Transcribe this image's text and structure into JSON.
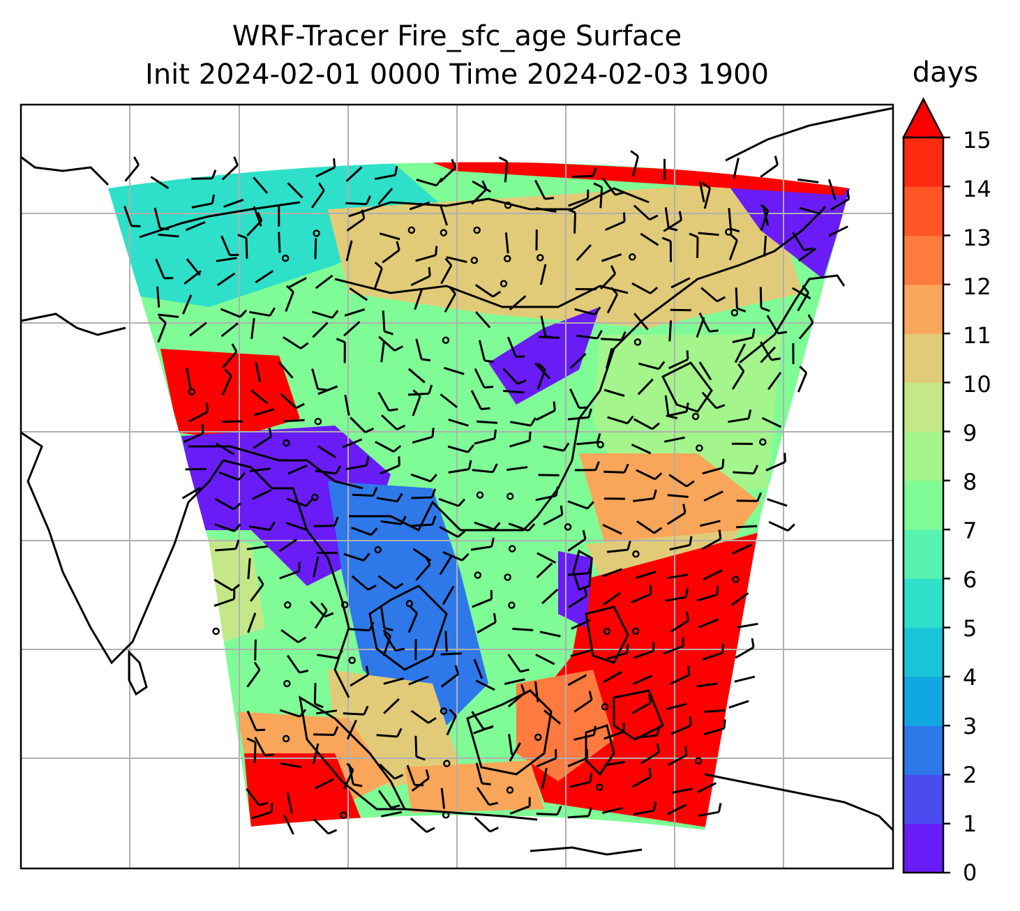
{
  "title": {
    "line1": "WRF-Tracer Fire_sfc_age Surface",
    "line2": "Init 2024-02-01 0000 Time 2024-02-03 1900"
  },
  "colorbar": {
    "units": "days",
    "tick_labels": [
      "0",
      "1",
      "2",
      "3",
      "4",
      "5",
      "6",
      "7",
      "8",
      "9",
      "10",
      "11",
      "12",
      "13",
      "14",
      "15"
    ],
    "levels": [
      0,
      1,
      2,
      3,
      4,
      5,
      6,
      7,
      8,
      9,
      10,
      11,
      12,
      13,
      14,
      15
    ],
    "extend": "max",
    "colors": [
      "#6a1cf6",
      "#4b4cf0",
      "#2f78ea",
      "#10a7e2",
      "#19c4d8",
      "#2ee0c9",
      "#58f2b0",
      "#7ffc96",
      "#a3f58c",
      "#c4e888",
      "#e2cb78",
      "#f9a65a",
      "#ff7a3e",
      "#ff5626",
      "#ff2c12"
    ],
    "over_color": "#ff0000"
  },
  "map": {
    "fill_colors": {
      "cool": "#7ffc96",
      "teal": "#2ee0c9",
      "tan": "#e2cb78",
      "red": "#ff0000",
      "violet": "#6a1cf6",
      "blue": "#2f78ea",
      "orange": "#f9a65a",
      "lightgreen": "#a3f58c"
    },
    "gridline_color": "#b0b0b0",
    "coastline_color": "#000000",
    "wind_barb_color": "#000000"
  }
}
